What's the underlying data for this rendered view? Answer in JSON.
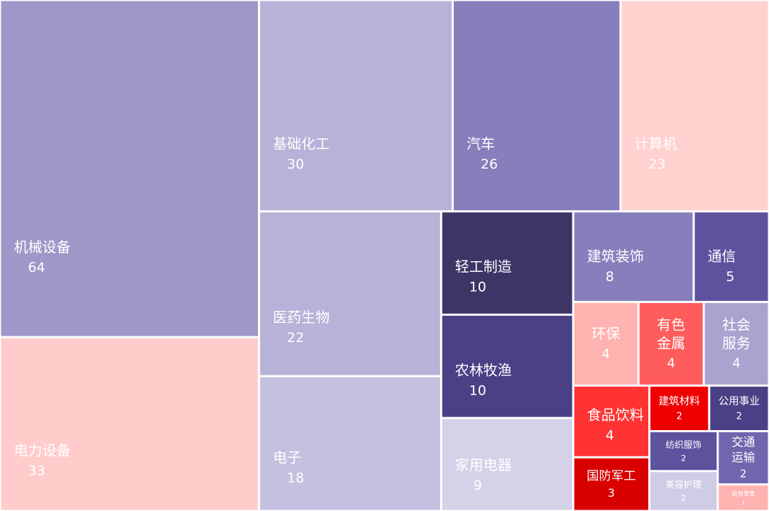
{
  "chart_data": {
    "type": "treemap",
    "categories": [
      "机械设备",
      "电力设备",
      "基础化工",
      "汽车",
      "计算机",
      "医药生物",
      "电子",
      "轻工制造",
      "农林牧渔",
      "家用电器",
      "建筑装饰",
      "通信",
      "环保",
      "有色金属",
      "社会服务",
      "食品饮料",
      "国防军工",
      "建筑材料",
      "公用事业",
      "纺织服饰",
      "美容护理",
      "交通运输",
      "商贸零售"
    ],
    "values": [
      64,
      33,
      30,
      26,
      23,
      22,
      18,
      10,
      10,
      9,
      8,
      5,
      4,
      4,
      4,
      4,
      3,
      2,
      2,
      2,
      2,
      2,
      1
    ],
    "colors": [
      "#9e97c8",
      "#ffcccb",
      "#b7b2d8",
      "#877fbc",
      "#ffd1cf",
      "#b7b2d8",
      "#c4c0e0",
      "#3d3566",
      "#4a4085",
      "#d4d1e8",
      "#877fbc",
      "#5d529e",
      "#ffb3b0",
      "#ff5c5c",
      "#a9a3d0",
      "#ff3333",
      "#d90000",
      "#ee0000",
      "#4a4085",
      "#5d529e",
      "#d0cce6",
      "#6f66ad",
      "#ffb3b0"
    ]
  }
}
